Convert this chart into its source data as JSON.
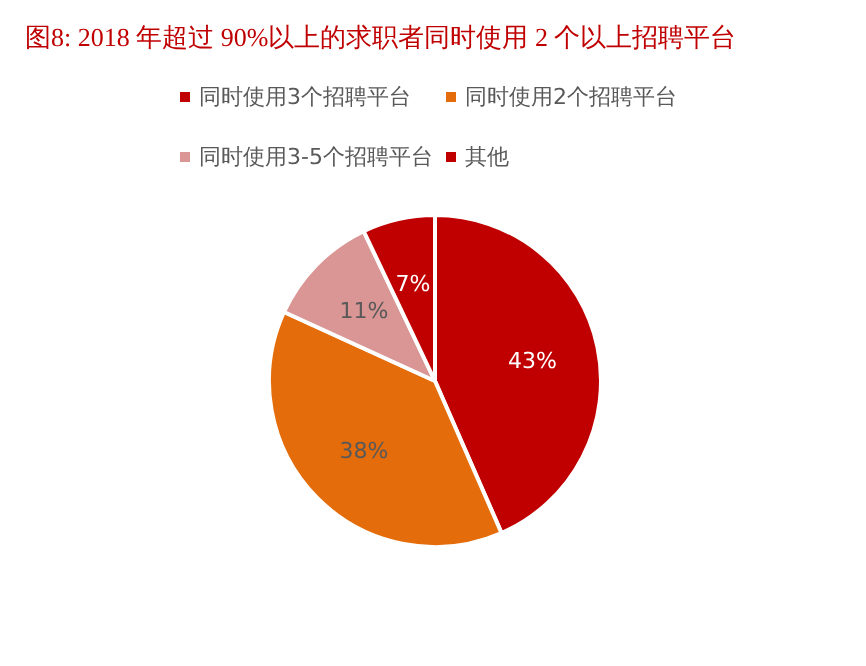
{
  "chart_data": {
    "type": "pie",
    "title": "图8:   2018 年超过 90%以上的求职者同时使用 2 个以上招聘平台",
    "categories": [
      "同时使用3个招聘平台",
      "同时使用2个招聘平台",
      "同时使用3-5个招聘平台",
      "其他"
    ],
    "values": [
      43,
      38,
      11,
      7
    ],
    "colors": [
      "#c00000",
      "#e46c0a",
      "#d99694",
      "#c00000"
    ],
    "value_labels": [
      "43%",
      "38%",
      "11%",
      "7%"
    ],
    "legend": "top"
  }
}
